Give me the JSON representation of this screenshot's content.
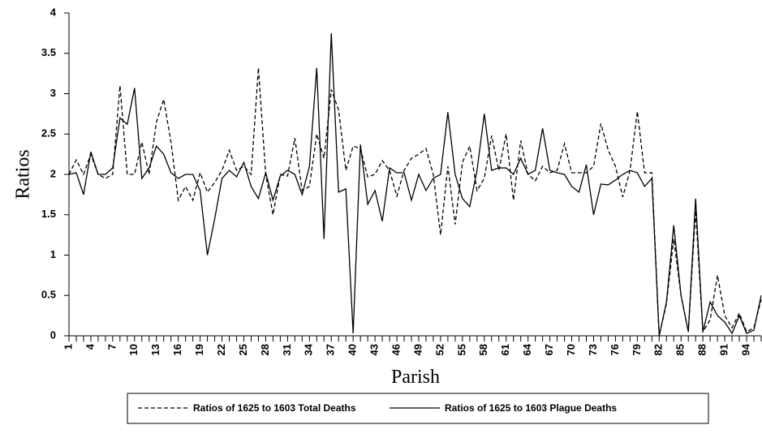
{
  "chart_data": {
    "type": "line",
    "y_label": "Ratios",
    "x_label": "Parish",
    "categories": [
      "1",
      null,
      null,
      "4",
      null,
      null,
      "7",
      null,
      null,
      "10",
      null,
      null,
      "13",
      null,
      null,
      "16",
      null,
      null,
      "19",
      null,
      null,
      "22",
      null,
      null,
      "25",
      null,
      null,
      "28",
      null,
      null,
      "31",
      null,
      null,
      "34",
      null,
      null,
      "37",
      null,
      null,
      "40",
      null,
      null,
      "43",
      null,
      null,
      "46",
      null,
      null,
      "49",
      null,
      null,
      "52",
      null,
      null,
      "55",
      null,
      null,
      "58",
      null,
      null,
      "61",
      null,
      null,
      "64",
      null,
      null,
      "67",
      null,
      null,
      "70",
      null,
      null,
      "73",
      null,
      null,
      "76",
      null,
      null,
      "79",
      null,
      null,
      "82",
      null,
      null,
      "85",
      null,
      null,
      "88",
      null,
      null,
      "91",
      null,
      null,
      "94",
      null,
      null
    ],
    "series": [
      {
        "name": "Ratios of 1625 to 1603 Total Deaths",
        "color": "#000000",
        "style": "dashed",
        "values": [
          2.0,
          2.18,
          2.0,
          2.25,
          2.0,
          1.95,
          2.0,
          3.1,
          2.0,
          2.0,
          2.4,
          2.0,
          2.65,
          2.93,
          2.4,
          1.68,
          1.85,
          1.68,
          2.02,
          1.78,
          1.9,
          2.05,
          2.3,
          2.05,
          2.1,
          2.0,
          3.32,
          2.0,
          1.5,
          2.0,
          1.98,
          2.45,
          1.8,
          1.85,
          2.5,
          2.2,
          3.05,
          2.8,
          2.05,
          2.35,
          2.32,
          1.97,
          2.0,
          2.17,
          2.05,
          1.73,
          2.05,
          2.2,
          2.25,
          2.32,
          2.0,
          1.25,
          2.1,
          1.38,
          2.15,
          2.35,
          1.8,
          1.95,
          2.48,
          2.05,
          2.5,
          1.68,
          2.42,
          2.0,
          1.92,
          2.1,
          2.02,
          2.05,
          2.38,
          2.02,
          2.02,
          2.02,
          2.1,
          2.63,
          2.3,
          2.1,
          1.72,
          2.05,
          2.78,
          2.02,
          2.02,
          0,
          0.4,
          1.2,
          0.5,
          0.05,
          1.55,
          0.05,
          0.2,
          0.75,
          0.25,
          0.1,
          0.28,
          0.05,
          0.1,
          0.45
        ]
      },
      {
        "name": "Ratios of 1625 to 1603 Plague Deaths",
        "color": "#000000",
        "style": "solid",
        "values": [
          2.0,
          2.02,
          1.75,
          2.28,
          2.0,
          2.0,
          2.08,
          2.7,
          2.62,
          3.07,
          1.95,
          2.08,
          2.35,
          2.25,
          2.02,
          1.95,
          2.0,
          2.0,
          1.8,
          1.0,
          1.45,
          1.95,
          2.05,
          1.97,
          2.15,
          1.85,
          1.7,
          2.02,
          1.68,
          1.98,
          2.05,
          2.0,
          1.75,
          2.1,
          3.32,
          1.2,
          3.75,
          1.78,
          1.82,
          0.03,
          2.37,
          1.63,
          1.8,
          1.42,
          2.08,
          2.02,
          2.02,
          1.68,
          2.0,
          1.8,
          1.95,
          2.0,
          2.77,
          2.0,
          1.7,
          1.6,
          2.05,
          2.75,
          2.05,
          2.08,
          2.08,
          2.0,
          2.2,
          2.0,
          2.05,
          2.57,
          2.05,
          2.02,
          2.0,
          1.85,
          1.78,
          2.12,
          1.5,
          1.88,
          1.87,
          1.93,
          2.0,
          2.05,
          2.02,
          1.85,
          1.95,
          0,
          0.42,
          1.37,
          0.5,
          0.05,
          1.7,
          0.05,
          0.42,
          0.25,
          0.17,
          0.03,
          0.25,
          0.03,
          0.07,
          0.5
        ]
      }
    ],
    "ylim": [
      0,
      4
    ],
    "yticks": [
      0,
      0.5,
      1,
      1.5,
      2,
      2.5,
      3,
      3.5,
      4
    ],
    "grid": false,
    "legend": "bottom"
  }
}
